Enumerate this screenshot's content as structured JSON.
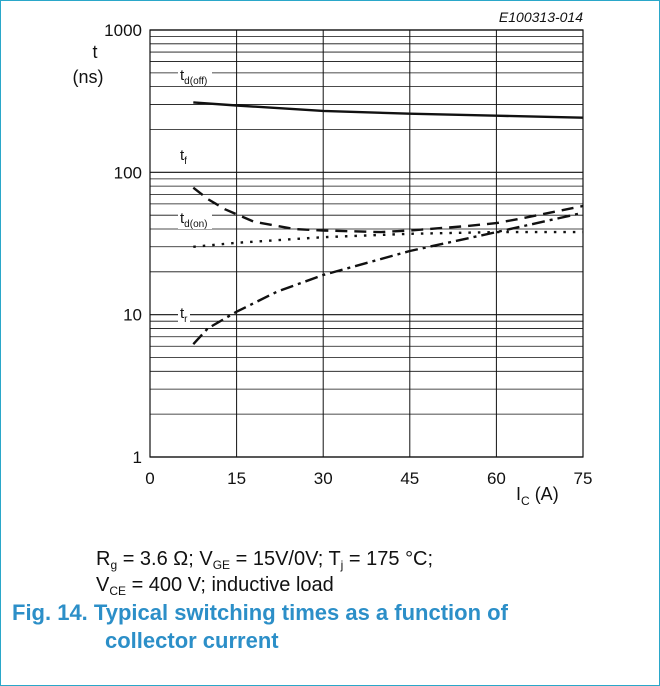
{
  "figure_id": "E100313-014",
  "colors": {
    "border": "#2aa7c9",
    "caption": "#2c8fc8",
    "ink": "#111111"
  },
  "chart_data": {
    "type": "line",
    "x_scale": "linear",
    "y_scale": "log",
    "xlim": [
      0,
      75
    ],
    "ylim": [
      1,
      1000
    ],
    "x_ticks": [
      0,
      15,
      30,
      45,
      60,
      75
    ],
    "y_ticks": [
      1,
      10,
      100,
      1000
    ],
    "y_label_line1": "t",
    "y_label_line2": "(ns)",
    "x_label_main": "I",
    "x_label_sub": "C",
    "x_label_unit": " (A)",
    "grid": true,
    "series": [
      {
        "name": "td(off)",
        "label_main": "t",
        "label_sub": "d(off)",
        "dash": "solid",
        "x": [
          7.5,
          15,
          30,
          45,
          60,
          75
        ],
        "y": [
          310,
          295,
          270,
          258,
          250,
          242
        ]
      },
      {
        "name": "tf",
        "label_main": "t",
        "label_sub": "f",
        "dash": "dash",
        "x": [
          7.5,
          10,
          13,
          18,
          25,
          30,
          40,
          45,
          55,
          60,
          65,
          75
        ],
        "y": [
          78,
          65,
          55,
          45,
          40,
          39,
          38,
          39,
          42,
          44,
          48,
          58
        ]
      },
      {
        "name": "td(on)",
        "label_main": "t",
        "label_sub": "d(on)",
        "dash": "dot",
        "x": [
          7.5,
          15,
          30,
          45,
          60,
          75
        ],
        "y": [
          30,
          32,
          35,
          37,
          38,
          38
        ]
      },
      {
        "name": "tr",
        "label_main": "t",
        "label_sub": "r",
        "dash": "dashdot",
        "x": [
          7.5,
          10,
          15,
          22,
          30,
          45,
          60,
          75
        ],
        "y": [
          6.2,
          8,
          10.5,
          14.5,
          19,
          28,
          38,
          52
        ]
      }
    ]
  },
  "conditions": {
    "rg_main": "R",
    "rg_sub": "g",
    "rg_val": " = 3.6 Ω; V",
    "vge_sub": "GE",
    "vge_val": " = 15V/0V; T",
    "tj_sub": "j",
    "tj_val": " = 175 °C;",
    "vce_main": "V",
    "vce_sub": "CE",
    "vce_val": " = 400 V; inductive load"
  },
  "caption": {
    "line1": "Fig. 14. Typical switching times as a function of",
    "line2": "collector current"
  }
}
